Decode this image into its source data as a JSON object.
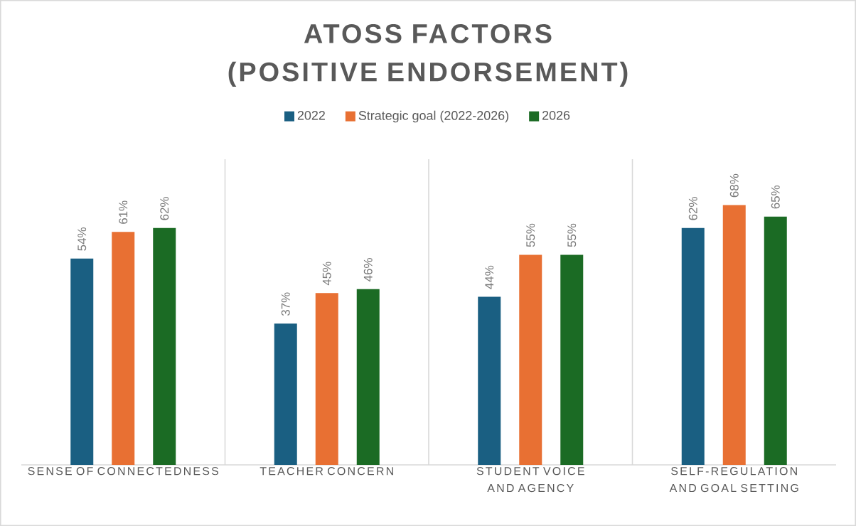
{
  "chart_data": {
    "type": "bar",
    "title": "ATOSS FACTORS (POSITIVE ENDORSEMENT)",
    "categories": [
      "SENSE OF CONNECTEDNESS",
      "TEACHER CONCERN",
      "STUDENT VOICE AND AGENCY",
      "SELF-REGULATION AND GOAL SETTING"
    ],
    "series": [
      {
        "name": "2022",
        "color": "#1a5f82",
        "values": [
          54,
          37,
          44,
          62
        ],
        "value_labels": [
          "54%",
          "37%",
          "44%",
          "62%"
        ]
      },
      {
        "name": "Strategic goal (2022-2026)",
        "color": "#e87033",
        "values": [
          61,
          45,
          55,
          68
        ],
        "value_labels": [
          "61%",
          "45%",
          "55%",
          "68%"
        ]
      },
      {
        "name": "2026",
        "color": "#1b6b24",
        "values": [
          62,
          46,
          55,
          65
        ],
        "value_labels": [
          "62%",
          "46%",
          "55%",
          "65%"
        ]
      }
    ],
    "ylim": [
      0,
      80
    ],
    "tick_labels": "x",
    "grid": "x",
    "legend": "top"
  }
}
